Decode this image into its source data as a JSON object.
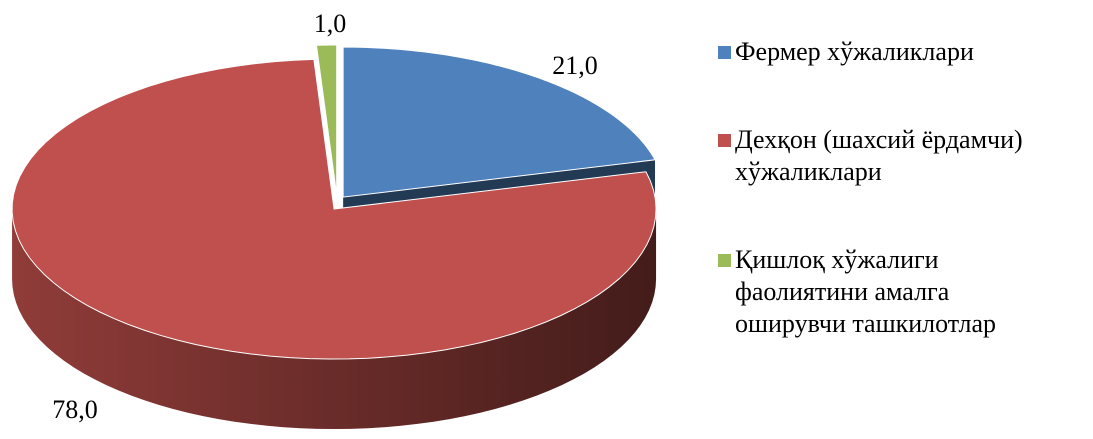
{
  "chart_data": {
    "type": "pie",
    "categories": [
      "Фермер хўжаликлари",
      "Дехқон (шахсий ёрдамчи) хўжаликлари",
      "Қишлоқ хўжалиги фаолиятини амалга оширувчи ташкилотлар"
    ],
    "values": [
      21,
      78,
      1
    ],
    "value_labels": [
      "21,0",
      "78,0",
      "1,0"
    ],
    "colors": [
      "#4f81bd",
      "#c0504d",
      "#9bbb59"
    ],
    "legend": "right"
  }
}
